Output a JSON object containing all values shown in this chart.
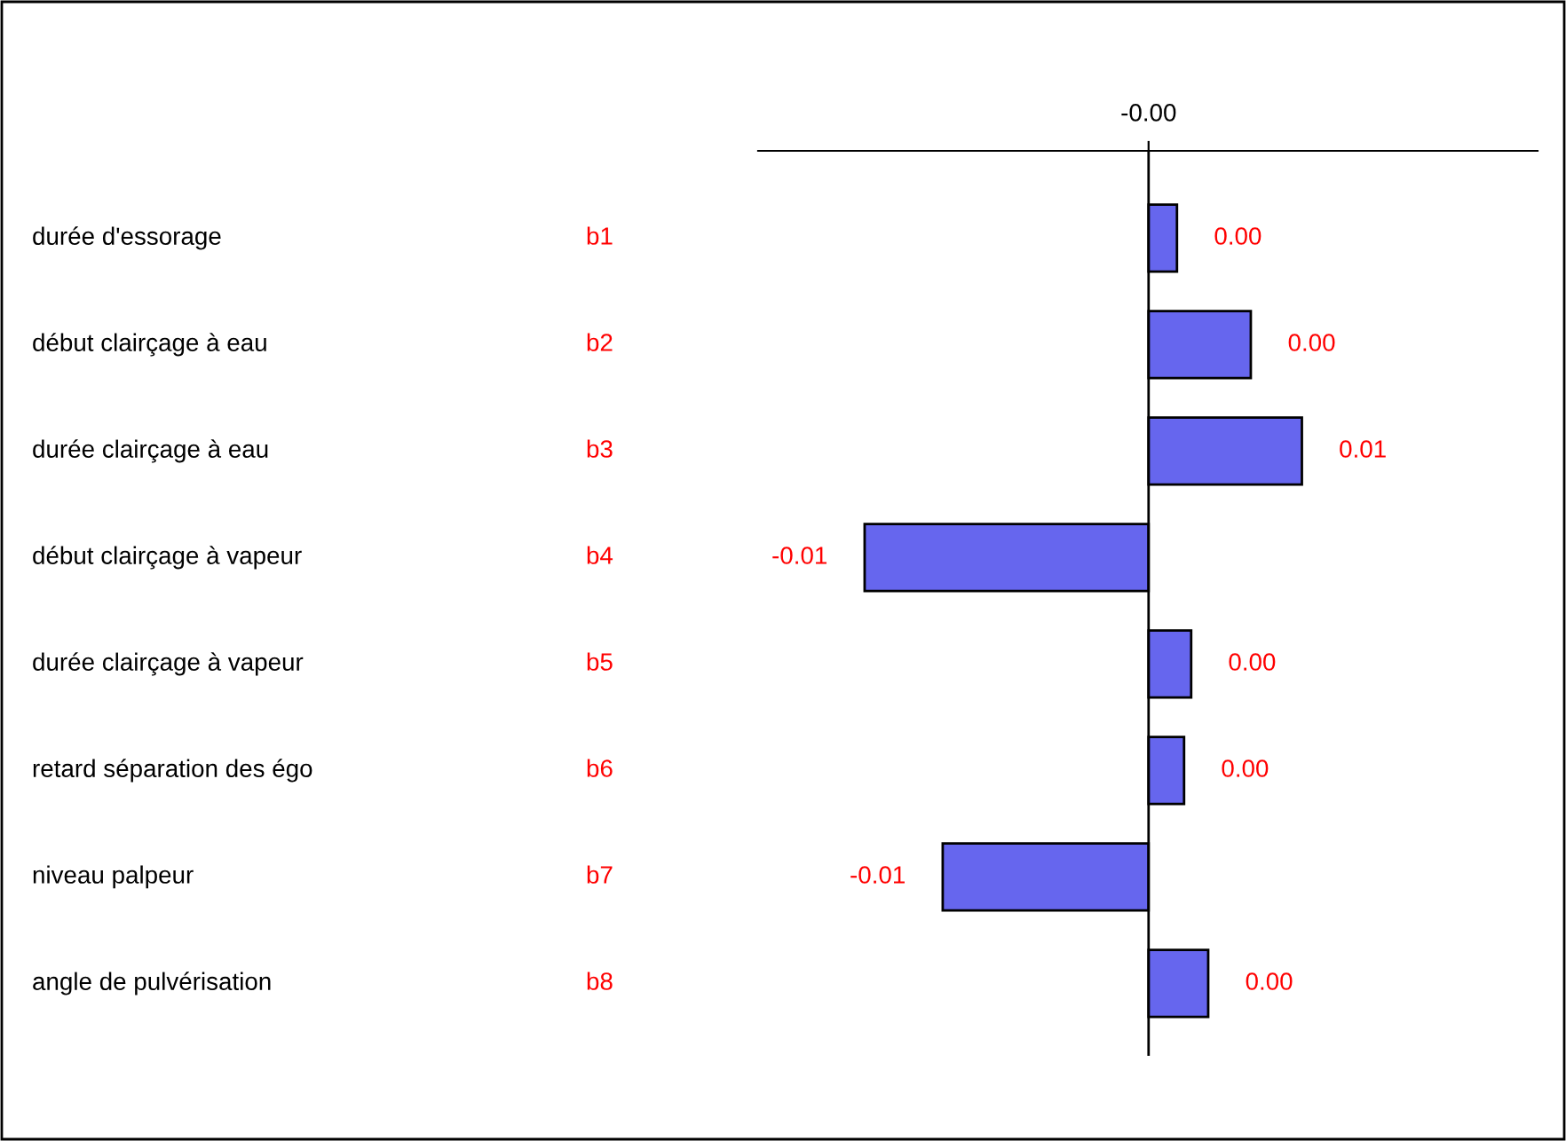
{
  "chart_data": {
    "type": "bar",
    "orientation": "horizontal",
    "annotations": [
      "-0.00"
    ],
    "categories": [
      "durée d'essorage",
      "début clairçage à eau",
      "durée clairçage à eau",
      "début clairçage à vapeur",
      "durée clairçage à vapeur",
      "retard séparation des égo",
      "niveau palpeur",
      "angle de pulvérisation"
    ],
    "y2_categories": [
      "b1",
      "b2",
      "b3",
      "b4",
      "b5",
      "b6",
      "b7",
      "b8"
    ],
    "values": [
      0.001,
      0.0036,
      0.0054,
      -0.01,
      0.0015,
      0.00125,
      -0.00725,
      0.0021
    ],
    "value_labels": [
      "0.00",
      "0.00",
      "0.01",
      "-0.01",
      "0.00",
      "0.00",
      "-0.01",
      "0.00"
    ],
    "color": "#6666ee",
    "grid": false,
    "legend": false
  }
}
